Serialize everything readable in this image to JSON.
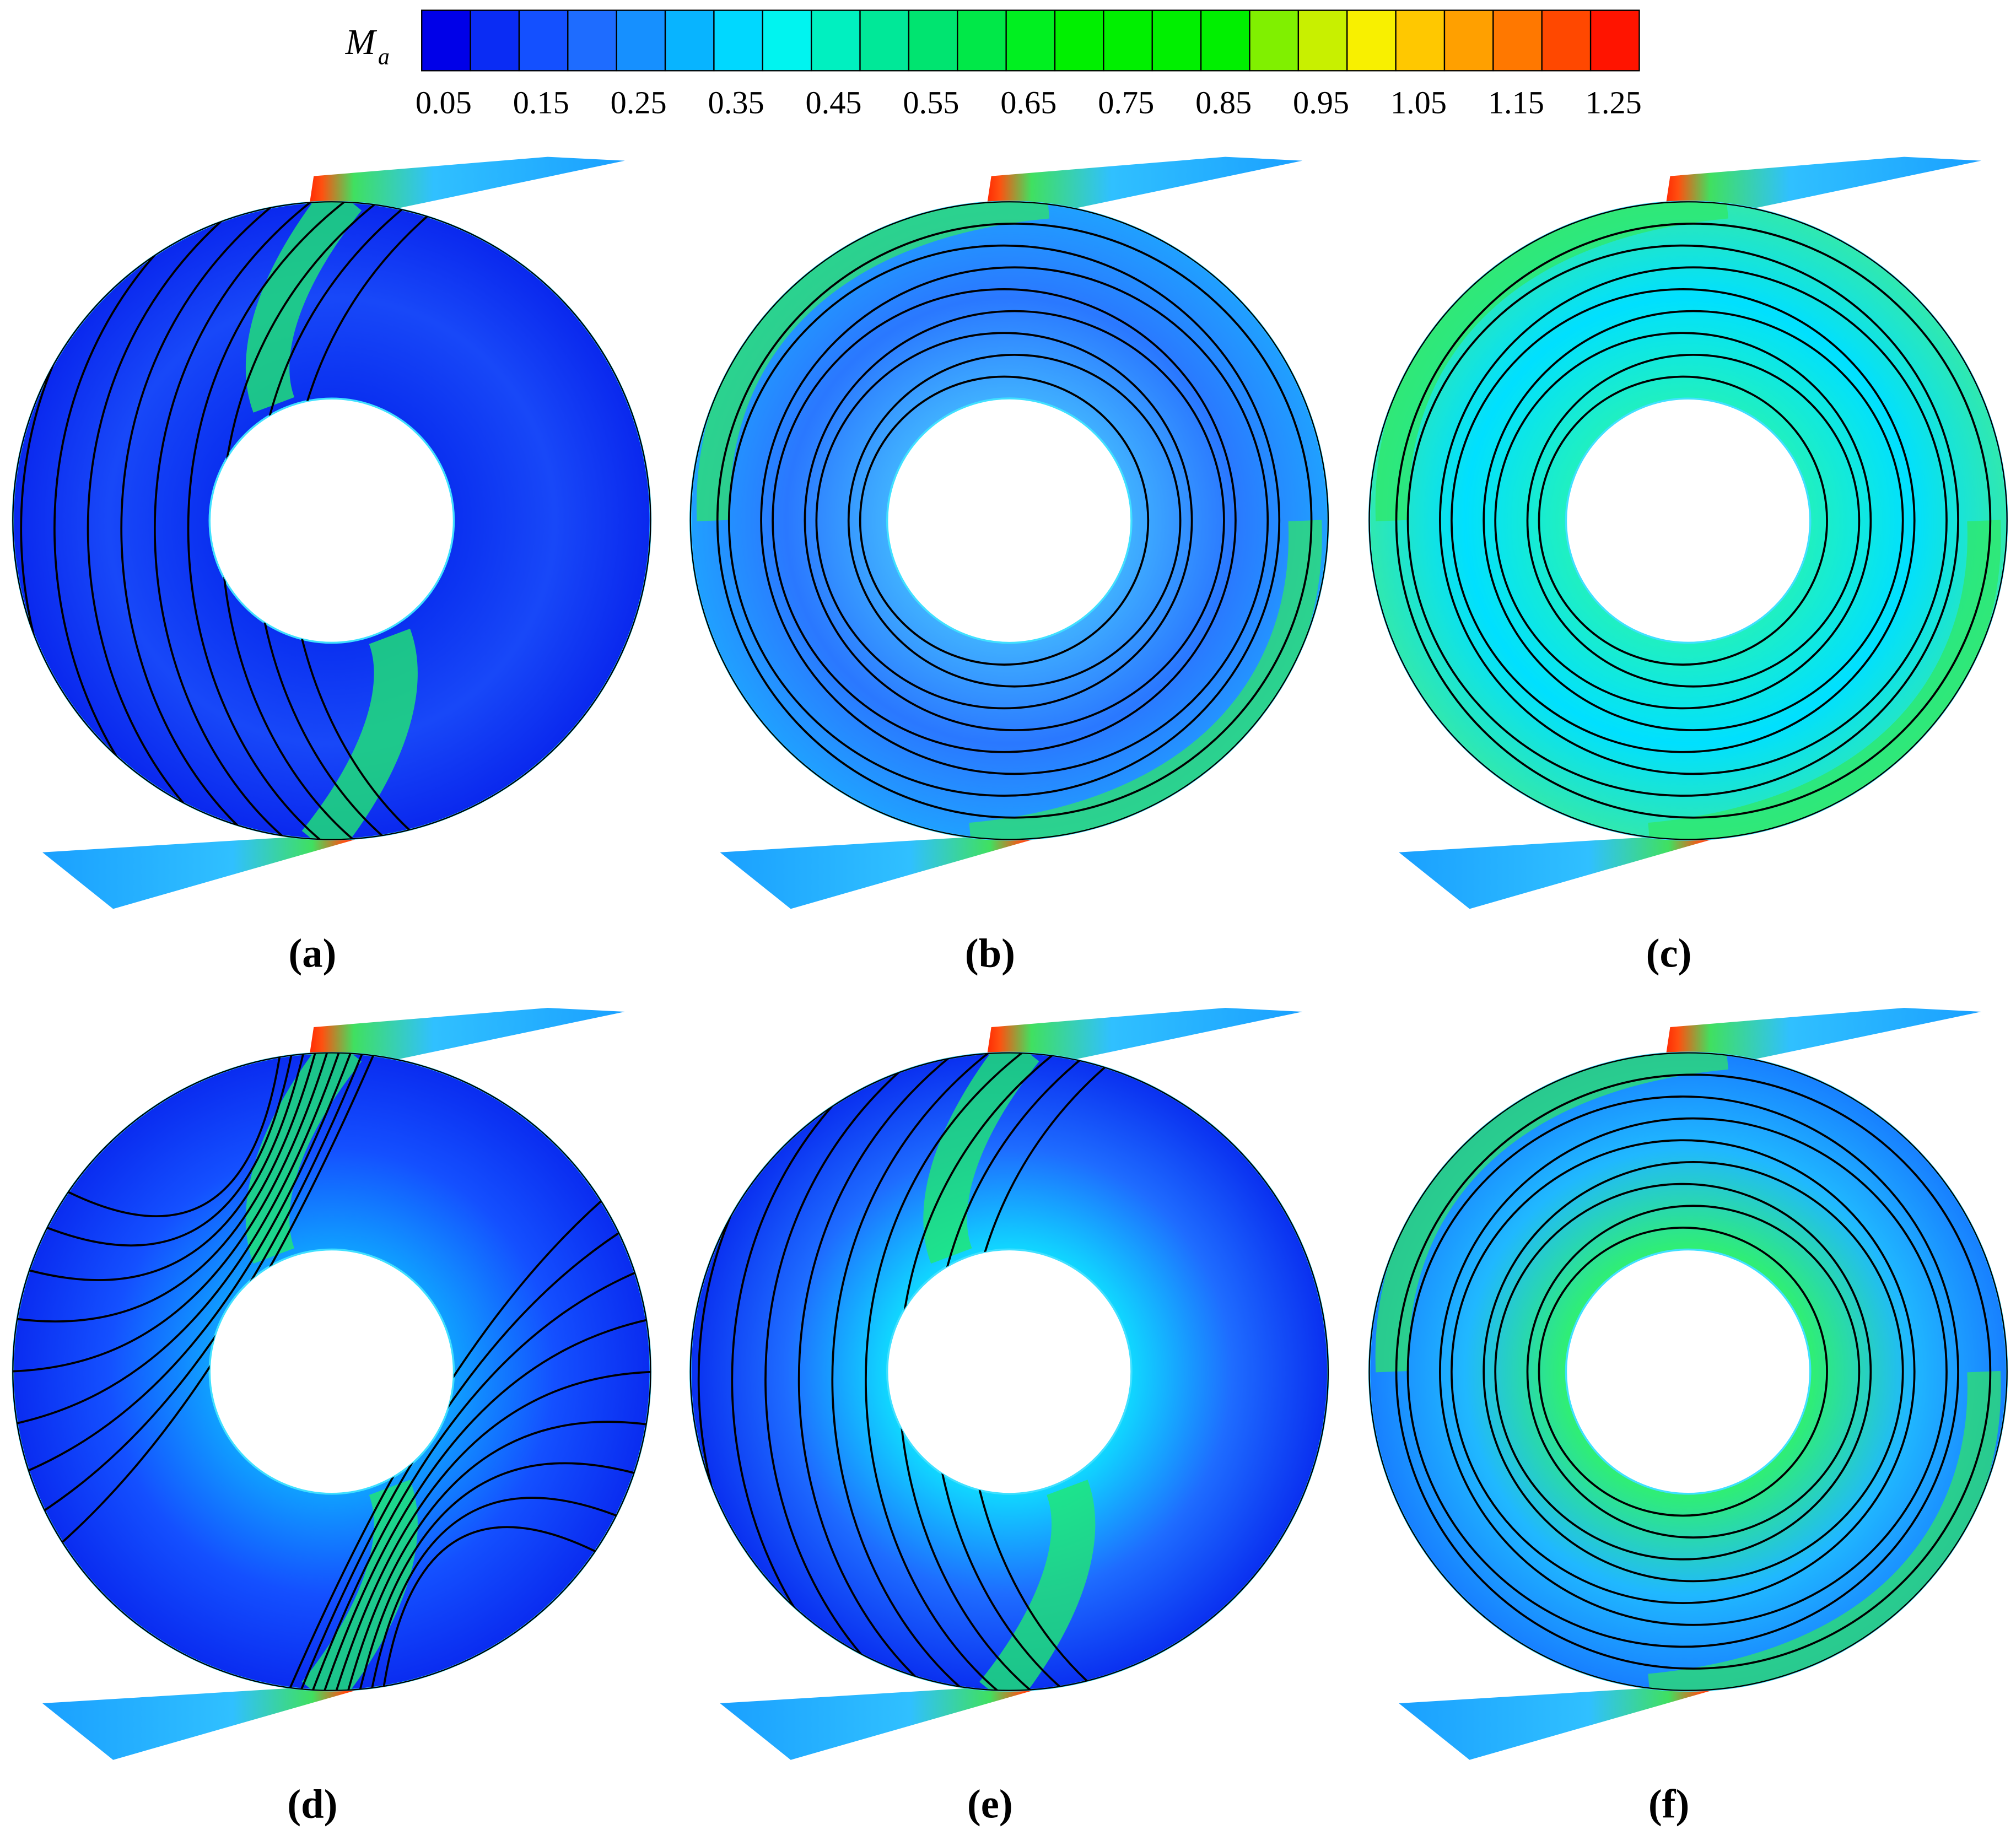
{
  "colorbar": {
    "label": "M",
    "label_subscript": "a",
    "ticks": [
      0.05,
      0.15,
      0.25,
      0.35,
      0.45,
      0.55,
      0.65,
      0.75,
      0.85,
      0.95,
      1.05,
      1.15,
      1.25
    ],
    "colors": [
      "#0000e8",
      "#0a2cf4",
      "#1450ff",
      "#1e6cff",
      "#1690ff",
      "#08b4ff",
      "#00d8ff",
      "#00f4f0",
      "#00f0c0",
      "#00e898",
      "#00e470",
      "#00e848",
      "#00f020",
      "#00f000",
      "#00f000",
      "#00f000",
      "#00f000",
      "#80f000",
      "#c8f000",
      "#f8f000",
      "#ffc800",
      "#ffa000",
      "#ff7800",
      "#ff4800",
      "#ff1400"
    ]
  },
  "panels": [
    {
      "caption": "(a)"
    },
    {
      "caption": "(b)"
    },
    {
      "caption": "(c)"
    },
    {
      "caption": "(d)"
    },
    {
      "caption": "(e)"
    },
    {
      "caption": "(f)"
    }
  ]
}
